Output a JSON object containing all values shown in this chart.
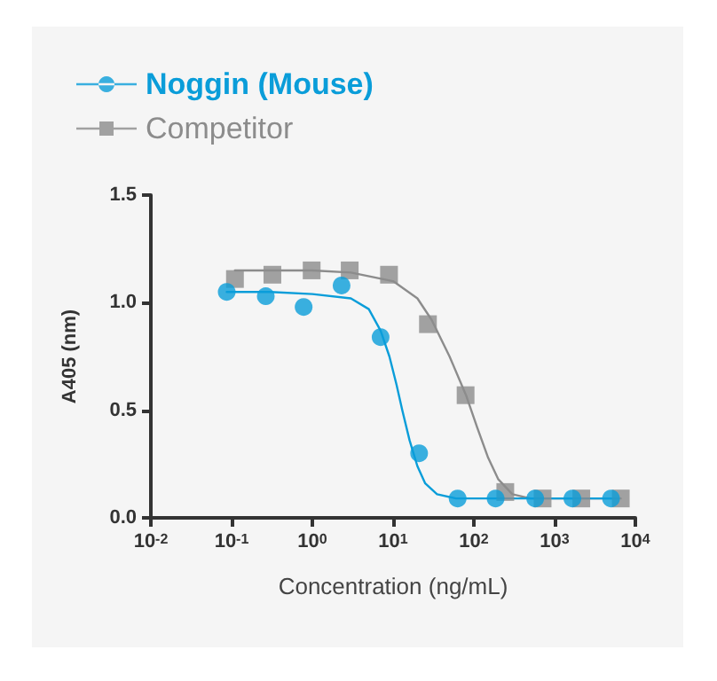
{
  "chart_data": {
    "type": "scatter",
    "xlabel": "Concentration (ng/mL)",
    "ylabel": "A405 (nm)",
    "log": "x",
    "grid": false,
    "legend": "top left",
    "xlim": [
      0.01,
      10000
    ],
    "xticks": [
      {
        "value": 0.01,
        "label": "10$^{-2}$"
      },
      {
        "value": 0.1,
        "label": "10$^{-1}$"
      },
      {
        "value": 1,
        "label": "10$^{0}$"
      },
      {
        "value": 10,
        "label": "10$^{1}$"
      },
      {
        "value": 100,
        "label": "10$^{2}$"
      },
      {
        "value": 1000,
        "label": "10$^{3}$"
      },
      {
        "value": 10000,
        "label": "10$^{4}$"
      }
    ],
    "ylim": [
      0,
      1.5
    ],
    "yticks": [
      {
        "value": 0,
        "label": "0.0"
      },
      0.5,
      {
        "value": 1,
        "label": "1.0"
      },
      1.5
    ],
    "series": [
      {
        "name": "Noggin (Mouse)",
        "color": "#0a9dd9",
        "marker": "circle",
        "x": [
          0.087,
          0.265,
          0.78,
          2.3,
          7.0,
          21,
          63,
          186,
          575,
          1660,
          5000
        ],
        "values": [
          1.05,
          1.03,
          0.98,
          1.08,
          0.84,
          0.3,
          0.09,
          0.09,
          0.09,
          0.09,
          0.09
        ]
      },
      {
        "name": "Competitor",
        "color": "#8c8c8c",
        "marker": "square",
        "x": [
          0.11,
          0.32,
          0.98,
          2.9,
          8.9,
          27,
          79,
          245,
          710,
          2140,
          6600
        ],
        "values": [
          1.11,
          1.13,
          1.15,
          1.15,
          1.13,
          0.9,
          0.57,
          0.12,
          0.09,
          0.09,
          0.09
        ]
      },
      {
        "type": "line",
        "color": "#0a9dd9",
        "marker": "none",
        "line_style": "solid",
        "x": [
          0.087,
          0.3,
          1,
          3,
          5,
          7,
          9,
          11,
          13,
          16,
          20,
          25,
          35,
          60,
          200,
          5000
        ],
        "values": [
          1.05,
          1.05,
          1.04,
          1.02,
          0.97,
          0.87,
          0.75,
          0.62,
          0.5,
          0.36,
          0.24,
          0.16,
          0.11,
          0.09,
          0.09,
          0.09
        ]
      },
      {
        "type": "line",
        "color": "#8c8c8c",
        "marker": "none",
        "line_style": "solid",
        "x": [
          0.11,
          1,
          3,
          10,
          20,
          30,
          50,
          80,
          110,
          150,
          200,
          300,
          500,
          6600
        ],
        "values": [
          1.15,
          1.15,
          1.14,
          1.1,
          1.02,
          0.92,
          0.75,
          0.57,
          0.42,
          0.28,
          0.18,
          0.11,
          0.09,
          0.09
        ]
      }
    ]
  }
}
